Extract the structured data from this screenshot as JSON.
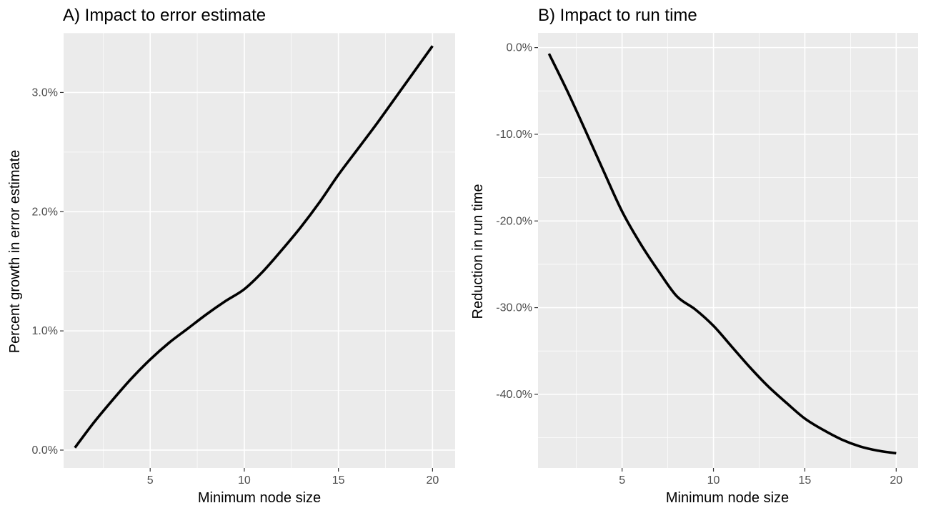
{
  "chart_data": [
    {
      "type": "line",
      "title": "A) Impact to error estimate",
      "xlabel": "Minimum node size",
      "ylabel": "Percent growth in error estimate",
      "xlim": [
        0.4,
        21.2
      ],
      "ylim": [
        -0.15,
        3.5
      ],
      "x_ticks": [
        5,
        10,
        15,
        20
      ],
      "x_tick_labels": [
        "5",
        "10",
        "15",
        "20"
      ],
      "y_ticks": [
        0,
        1,
        2,
        3
      ],
      "y_tick_labels": [
        "0.0%",
        "1.0%",
        "2.0%",
        "3.0%"
      ],
      "y_unit": "percent",
      "grid": true,
      "series": [
        {
          "color": "#000000",
          "x": [
            1,
            2,
            3,
            4,
            5,
            6,
            7,
            8,
            9,
            10,
            11,
            12,
            13,
            14,
            15,
            16,
            17,
            18,
            19,
            20
          ],
          "y": [
            0.02,
            0.23,
            0.42,
            0.6,
            0.76,
            0.9,
            1.02,
            1.14,
            1.25,
            1.35,
            1.5,
            1.68,
            1.87,
            2.08,
            2.31,
            2.52,
            2.73,
            2.95,
            3.17,
            3.39
          ]
        }
      ]
    },
    {
      "type": "line",
      "title": "B) Impact to run time",
      "xlabel": "Minimum node size",
      "ylabel": "Reduction in run time",
      "xlim": [
        0.4,
        21.2
      ],
      "ylim": [
        -48.5,
        1.7
      ],
      "x_ticks": [
        5,
        10,
        15,
        20
      ],
      "x_tick_labels": [
        "5",
        "10",
        "15",
        "20"
      ],
      "y_ticks": [
        0,
        -10,
        -20,
        -30,
        -40
      ],
      "y_tick_labels": [
        "0.0%",
        "-10.0%",
        "-20.0%",
        "-30.0%",
        "-40.0%"
      ],
      "y_unit": "percent",
      "grid": true,
      "series": [
        {
          "color": "#000000",
          "x": [
            1,
            2,
            3,
            4,
            5,
            6,
            7,
            8,
            9,
            10,
            11,
            12,
            13,
            14,
            15,
            16,
            17,
            18,
            19,
            20
          ],
          "y": [
            -0.7,
            -5.0,
            -9.6,
            -14.3,
            -18.9,
            -22.6,
            -25.8,
            -28.7,
            -30.2,
            -32.1,
            -34.5,
            -36.9,
            -39.1,
            -41.0,
            -42.8,
            -44.1,
            -45.2,
            -46.0,
            -46.5,
            -46.8
          ]
        }
      ]
    }
  ]
}
